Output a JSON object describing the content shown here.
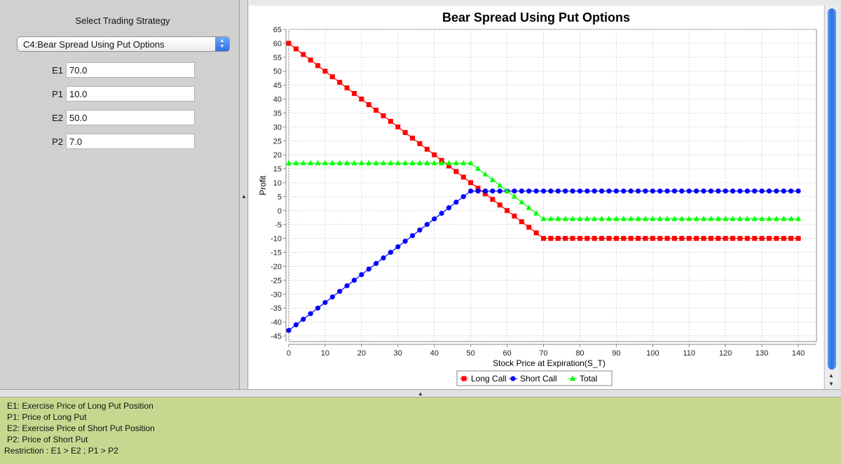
{
  "sidebar": {
    "title": "Select Trading Strategy",
    "selected_strategy": "C4:Bear Spread Using Put Options",
    "params": [
      {
        "label": "E1",
        "value": "70.0"
      },
      {
        "label": "P1",
        "value": "10.0"
      },
      {
        "label": "E2",
        "value": "50.0"
      },
      {
        "label": "P2",
        "value": "7.0"
      }
    ]
  },
  "info": {
    "lines": [
      "E1: Exercise Price of Long Put Position",
      "P1: Price of Long Put",
      "E2: Exercise Price of Short Put Position",
      "P2: Price of Short Put",
      "Restriction : E1 > E2 ; P1 > P2"
    ]
  },
  "colors": {
    "long": "#ff0000",
    "short": "#0000ff",
    "total": "#00ff00",
    "info_bg": "#c6d88f",
    "accent": "#2f6ee6"
  },
  "icons": {
    "select_arrows": "up-down-arrows-icon",
    "splitter_handle": "caret-up-icon"
  },
  "chart_data": {
    "type": "line",
    "title": "Bear Spread Using Put Options",
    "xlabel": "Stock Price at Expiration(S_T)",
    "ylabel": "Profit",
    "xlim": [
      0,
      145
    ],
    "ylim": [
      -47,
      65
    ],
    "xticks": [
      0,
      10,
      20,
      30,
      40,
      50,
      60,
      70,
      80,
      90,
      100,
      110,
      120,
      130,
      140
    ],
    "yticks": [
      -45,
      -40,
      -35,
      -30,
      -25,
      -20,
      -15,
      -10,
      -5,
      0,
      5,
      10,
      15,
      20,
      25,
      30,
      35,
      40,
      45,
      50,
      55,
      60,
      65
    ],
    "grid": true,
    "legend_position": "bottom-center",
    "x_start": 0,
    "x_end": 140,
    "x_step": 2,
    "series": [
      {
        "name": "Long Call",
        "marker": "square",
        "color": "#ff0000",
        "x": [
          0,
          70,
          140
        ],
        "y": [
          60,
          -10,
          -10
        ]
      },
      {
        "name": "Short Call",
        "marker": "circle",
        "color": "#0000ff",
        "x": [
          0,
          50,
          140
        ],
        "y": [
          -43,
          7,
          7
        ]
      },
      {
        "name": "Total",
        "marker": "triangle",
        "color": "#00ff00",
        "x": [
          0,
          50,
          70,
          140
        ],
        "y": [
          17,
          17,
          -3,
          -3
        ]
      }
    ]
  }
}
